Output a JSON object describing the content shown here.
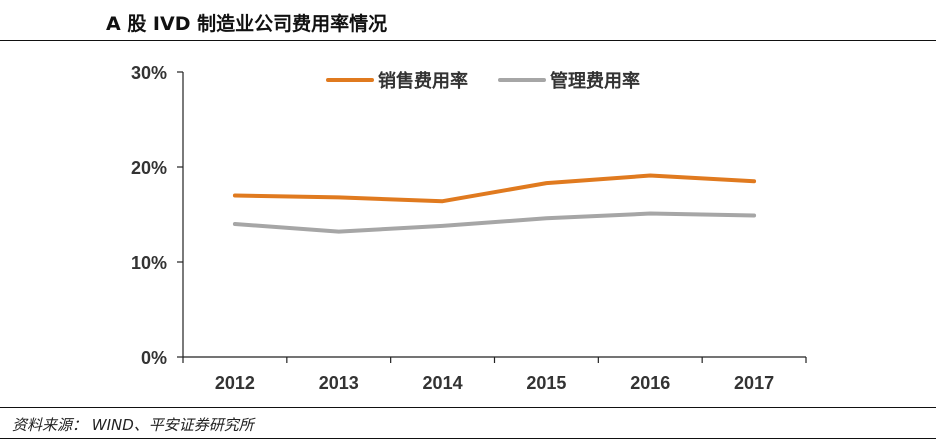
{
  "title": "A 股 IVD 制造业公司费用率情况",
  "source": "资料来源： WIND、平安证券研究所",
  "colors": {
    "sales": "#E07A1F",
    "admin": "#A6A6A6",
    "axis": "#222222"
  },
  "chart_data": {
    "type": "line",
    "categories": [
      "2012",
      "2013",
      "2014",
      "2015",
      "2016",
      "2017"
    ],
    "y_ticks": [
      0,
      10,
      20,
      30
    ],
    "y_tick_labels": [
      "0%",
      "10%",
      "20%",
      "30%"
    ],
    "ylim": [
      0,
      30
    ],
    "grid": false,
    "legend_position": "top",
    "series": [
      {
        "name": "销售费用率",
        "color": "#E07A1F",
        "values": [
          17.0,
          16.8,
          16.4,
          18.3,
          19.1,
          18.5
        ]
      },
      {
        "name": "管理费用率",
        "color": "#A6A6A6",
        "values": [
          14.0,
          13.2,
          13.8,
          14.6,
          15.1,
          14.9
        ]
      }
    ]
  }
}
